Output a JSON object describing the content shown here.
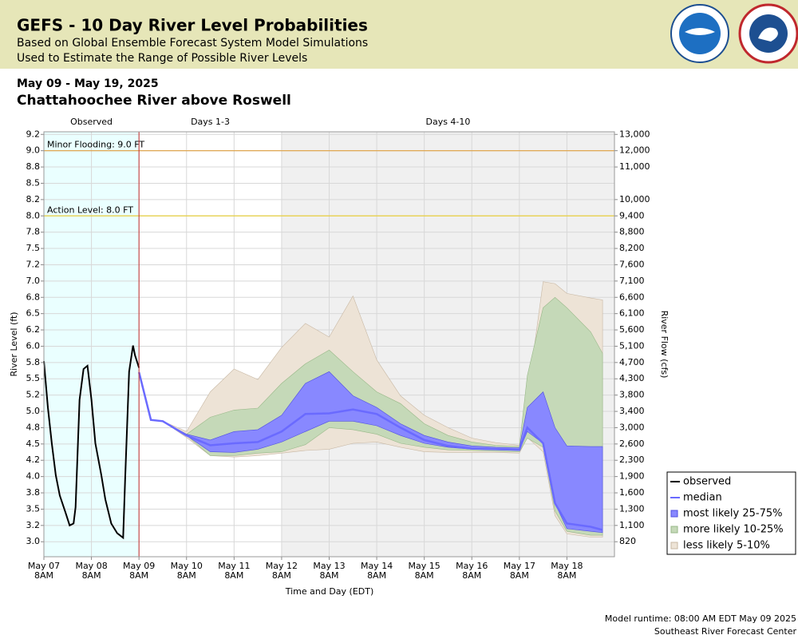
{
  "chart_data": {
    "type": "probability-band",
    "title": "GEFS - 10 Day River Level Probabilities",
    "subtitle": [
      "Based on Global Ensemble Forecast System Model Simulations",
      "Used to Estimate the Range of Possible River Levels"
    ],
    "date_range": "May 09 - May 19, 2025",
    "location": "Chattahoochee River above Roswell",
    "y_label": "River Level (ft)",
    "y2_label": "River Flow (cfs)",
    "x_label": "Time and Day (EDT)",
    "footer": [
      "Model runtime: 08:00 AM EDT May 09 2025",
      "Southeast River Forecast Center"
    ],
    "xlim": [
      "2025-05-07 08:00",
      "2025-05-19 08:00"
    ],
    "xticks": [
      {
        "value": "2025-05-07 08:00",
        "label": [
          "May 07",
          "8AM"
        ]
      },
      {
        "value": "2025-05-08 08:00",
        "label": [
          "May 08",
          "8AM"
        ]
      },
      {
        "value": "2025-05-09 08:00",
        "label": [
          "May 09",
          "8AM"
        ]
      },
      {
        "value": "2025-05-10 08:00",
        "label": [
          "May 10",
          "8AM"
        ]
      },
      {
        "value": "2025-05-11 08:00",
        "label": [
          "May 11",
          "8AM"
        ]
      },
      {
        "value": "2025-05-12 08:00",
        "label": [
          "May 12",
          "8AM"
        ]
      },
      {
        "value": "2025-05-13 08:00",
        "label": [
          "May 13",
          "8AM"
        ]
      },
      {
        "value": "2025-05-14 08:00",
        "label": [
          "May 14",
          "8AM"
        ]
      },
      {
        "value": "2025-05-15 08:00",
        "label": [
          "May 15",
          "8AM"
        ]
      },
      {
        "value": "2025-05-16 08:00",
        "label": [
          "May 16",
          "8AM"
        ]
      },
      {
        "value": "2025-05-17 08:00",
        "label": [
          "May 17",
          "8AM"
        ]
      },
      {
        "value": "2025-05-18 08:00",
        "label": [
          "May 18",
          "8AM"
        ]
      }
    ],
    "ylim": [
      2.77,
      9.29
    ],
    "yticks": [
      {
        "value": 9.25,
        "label": "9.2"
      },
      {
        "value": 9.0,
        "label": "9.0"
      },
      {
        "value": 8.75,
        "label": "8.8"
      },
      {
        "value": 8.5,
        "label": "8.5"
      },
      {
        "value": 8.25,
        "label": "8.2"
      },
      {
        "value": 8.0,
        "label": "8.0"
      },
      {
        "value": 7.75,
        "label": "7.8"
      },
      {
        "value": 7.5,
        "label": "7.5"
      },
      {
        "value": 7.25,
        "label": "7.2"
      },
      {
        "value": 7.0,
        "label": "7.0"
      },
      {
        "value": 6.75,
        "label": "6.8"
      },
      {
        "value": 6.5,
        "label": "6.5"
      },
      {
        "value": 6.25,
        "label": "6.2"
      },
      {
        "value": 6.0,
        "label": "6.0"
      },
      {
        "value": 5.75,
        "label": "5.8"
      },
      {
        "value": 5.5,
        "label": "5.5"
      },
      {
        "value": 5.25,
        "label": "5.2"
      },
      {
        "value": 5.0,
        "label": "5.0"
      },
      {
        "value": 4.75,
        "label": "4.8"
      },
      {
        "value": 4.5,
        "label": "4.5"
      },
      {
        "value": 4.25,
        "label": "4.2"
      },
      {
        "value": 4.0,
        "label": "4.0"
      },
      {
        "value": 3.75,
        "label": "3.8"
      },
      {
        "value": 3.5,
        "label": "3.5"
      },
      {
        "value": 3.25,
        "label": "3.2"
      },
      {
        "value": 3.0,
        "label": "3.0"
      }
    ],
    "y2ticks": [
      {
        "value": 13000,
        "label": "13,000"
      },
      {
        "value": 12000,
        "label": "12,000"
      },
      {
        "value": 11000,
        "label": "11,000"
      },
      null,
      {
        "value": 10000,
        "label": "10,000"
      },
      {
        "value": 9400,
        "label": "9,400"
      },
      {
        "value": 8800,
        "label": "8,800"
      },
      {
        "value": 8200,
        "label": "8,200"
      },
      {
        "value": 7600,
        "label": "7,600"
      },
      {
        "value": 7100,
        "label": "7,100"
      },
      {
        "value": 6600,
        "label": "6,600"
      },
      {
        "value": 6100,
        "label": "6,100"
      },
      {
        "value": 5600,
        "label": "5,600"
      },
      {
        "value": 5100,
        "label": "5,100"
      },
      {
        "value": 4700,
        "label": "4,700"
      },
      {
        "value": 4300,
        "label": "4,300"
      },
      {
        "value": 3800,
        "label": "3,800"
      },
      {
        "value": 3400,
        "label": "3,400"
      },
      {
        "value": 3000,
        "label": "3,000"
      },
      {
        "value": 2600,
        "label": "2,600"
      },
      {
        "value": 2300,
        "label": "2,300"
      },
      {
        "value": 1900,
        "label": "1,900"
      },
      {
        "value": 1600,
        "label": "1,600"
      },
      {
        "value": 1300,
        "label": "1,300"
      },
      {
        "value": 1100,
        "label": "1,100"
      },
      820
    ],
    "grid": true,
    "regions": [
      {
        "label": "Observed",
        "start": "2025-05-07 08:00",
        "end": "2025-05-09 08:00",
        "color": "#eaffff"
      },
      {
        "label": "Days 1-3",
        "start": "2025-05-09 08:00",
        "end": "2025-05-12 08:00",
        "color": "#ffffff"
      },
      {
        "label": "Days 4-10",
        "start": "2025-05-12 08:00",
        "end": "2025-05-19 08:00",
        "color": "#f0f0f0"
      }
    ],
    "thresholds": [
      {
        "label": "Minor Flooding: 9.0 FT",
        "value": 9.0,
        "color": "#e0a040"
      },
      {
        "label": "Action Level: 8.0 FT",
        "value": 8.0,
        "color": "#e8d040"
      }
    ],
    "legend": "lower right",
    "observed": {
      "name": "observed",
      "color": "#000000",
      "x": [
        "2025-05-07 08:00",
        "2025-05-07 10:00",
        "2025-05-07 12:00",
        "2025-05-07 14:00",
        "2025-05-07 16:00",
        "2025-05-07 19:00",
        "2025-05-07 21:00",
        "2025-05-07 23:00",
        "2025-05-08 00:00",
        "2025-05-08 02:00",
        "2025-05-08 04:00",
        "2025-05-08 06:00",
        "2025-05-08 08:00",
        "2025-05-08 10:00",
        "2025-05-08 13:00",
        "2025-05-08 15:00",
        "2025-05-08 18:00",
        "2025-05-08 21:00",
        "2025-05-09 00:00",
        "2025-05-09 01:00",
        "2025-05-09 03:00",
        "2025-05-09 05:00",
        "2025-05-09 06:00",
        "2025-05-09 08:00"
      ],
      "values": [
        5.77,
        5.06,
        4.51,
        4.02,
        3.71,
        3.44,
        3.25,
        3.28,
        3.53,
        5.18,
        5.65,
        5.7,
        5.18,
        4.51,
        4.02,
        3.65,
        3.28,
        3.13,
        3.06,
        3.95,
        5.61,
        6.01,
        5.86,
        5.67
      ]
    },
    "forecast_x": [
      "2025-05-09 08:00",
      "2025-05-09 14:00",
      "2025-05-09 20:00",
      "2025-05-10 08:00",
      "2025-05-10 20:00",
      "2025-05-11 08:00",
      "2025-05-11 20:00",
      "2025-05-12 08:00",
      "2025-05-12 20:00",
      "2025-05-13 08:00",
      "2025-05-13 20:00",
      "2025-05-14 08:00",
      "2025-05-14 20:00",
      "2025-05-15 08:00",
      "2025-05-15 20:00",
      "2025-05-16 08:00",
      "2025-05-16 20:00",
      "2025-05-17 08:00",
      "2025-05-17 12:00",
      "2025-05-17 20:00",
      "2025-05-18 02:00",
      "2025-05-18 08:00",
      "2025-05-18 20:00",
      "2025-05-19 02:00"
    ],
    "bands": [
      {
        "name": "less likely 5-10%",
        "color": "#ede3d6",
        "edge": "#c8b8a4",
        "lower": [
          5.6,
          4.87,
          4.85,
          4.6,
          4.32,
          4.3,
          4.32,
          4.36,
          4.4,
          4.42,
          4.51,
          4.53,
          4.45,
          4.38,
          4.37,
          4.37,
          4.37,
          4.36,
          4.6,
          4.38,
          3.4,
          3.12,
          3.07,
          3.07
        ],
        "upper": [
          5.6,
          4.87,
          4.85,
          4.69,
          5.3,
          5.65,
          5.49,
          5.98,
          6.35,
          6.14,
          6.77,
          5.79,
          5.24,
          4.94,
          4.75,
          4.59,
          4.52,
          4.48,
          5.2,
          6.99,
          6.96,
          6.81,
          6.74,
          6.71
        ]
      },
      {
        "name": "more likely 10-25%",
        "color": "#c5d9b8",
        "edge": "#98b888",
        "lower": [
          5.6,
          4.87,
          4.85,
          4.63,
          4.32,
          4.32,
          4.36,
          4.38,
          4.49,
          4.75,
          4.72,
          4.65,
          4.51,
          4.45,
          4.41,
          4.4,
          4.39,
          4.38,
          4.59,
          4.45,
          3.47,
          3.16,
          3.1,
          3.1
        ],
        "upper": [
          5.6,
          4.87,
          4.85,
          4.65,
          4.91,
          5.02,
          5.05,
          5.43,
          5.73,
          5.94,
          5.61,
          5.3,
          5.12,
          4.81,
          4.63,
          4.53,
          4.48,
          4.46,
          5.55,
          6.59,
          6.75,
          6.59,
          6.22,
          5.89
        ]
      },
      {
        "name": "most likely 25-75%",
        "color": "#8888ff",
        "edge": "#5050e0",
        "lower": [
          5.6,
          4.87,
          4.85,
          4.63,
          4.38,
          4.37,
          4.42,
          4.53,
          4.69,
          4.85,
          4.85,
          4.78,
          4.63,
          4.51,
          4.45,
          4.42,
          4.41,
          4.4,
          4.69,
          4.51,
          3.59,
          3.2,
          3.16,
          3.14
        ],
        "upper": [
          5.6,
          4.87,
          4.85,
          4.65,
          4.56,
          4.69,
          4.72,
          4.94,
          5.43,
          5.61,
          5.24,
          5.06,
          4.81,
          4.63,
          4.53,
          4.47,
          4.45,
          4.44,
          5.06,
          5.3,
          4.75,
          4.47,
          4.46,
          4.46
        ]
      }
    ],
    "median": {
      "name": "median",
      "color": "#6a6aff",
      "values": [
        5.6,
        4.87,
        4.85,
        4.63,
        4.48,
        4.51,
        4.53,
        4.69,
        4.96,
        4.97,
        5.03,
        4.96,
        4.75,
        4.56,
        4.47,
        4.43,
        4.42,
        4.41,
        4.75,
        4.51,
        3.59,
        3.28,
        3.23,
        3.18
      ]
    }
  }
}
